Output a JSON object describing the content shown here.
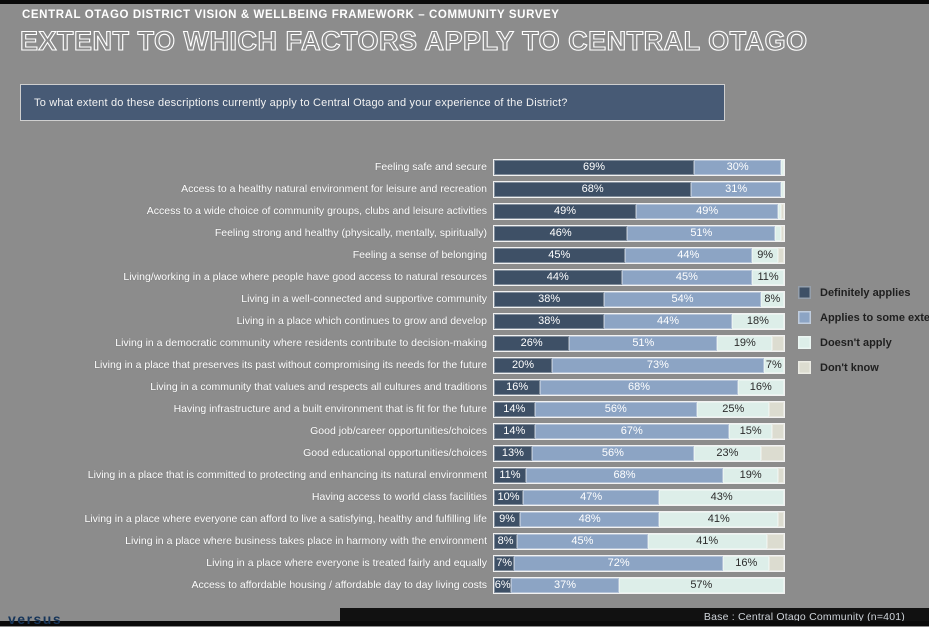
{
  "page": {
    "background": "#8c8c8c"
  },
  "header": {
    "eyebrow": "CENTRAL OTAGO DISTRICT VISION & WELLBEING FRAMEWORK – COMMUNITY SURVEY",
    "title": "EXTENT TO WHICH FACTORS APPLY TO CENTRAL OTAGO"
  },
  "question": {
    "text": "To what extent do these descriptions currently apply to Central Otago and your experience of the District?"
  },
  "legend": {
    "items": [
      {
        "label": "Definitely applies",
        "color": "#3e5066"
      },
      {
        "label": "Applies to some extent",
        "color": "#8ca4c4"
      },
      {
        "label": "Doesn't apply",
        "color": "#ddeee9"
      },
      {
        "label": "Don't know",
        "color": "#dcdcd0"
      }
    ]
  },
  "footer": {
    "logo": "versus",
    "base_note": "Base : Central Otago Community (n=401)"
  },
  "chart_data": {
    "type": "bar",
    "orientation": "horizontal",
    "stacked": true,
    "xlim": [
      0,
      100
    ],
    "grid": false,
    "legend_position": "right",
    "label_threshold": 6,
    "categories": [
      "Feeling safe and secure",
      "Access to a healthy natural environment for leisure and recreation",
      "Access to a wide choice of community groups, clubs and leisure activities",
      "Feeling strong and healthy (physically, mentally, spiritually)",
      "Feeling a sense of belonging",
      "Living/working in a place where people have good access to natural resources",
      "Living in a well-connected and supportive community",
      "Living in a place which continues to grow and develop",
      "Living in a democratic community where residents contribute to decision-making",
      "Living in a place that preserves its past without compromising its needs for the future",
      "Living in a community that values and respects all cultures and traditions",
      "Having infrastructure and a built environment that is fit for the future",
      "Good job/career opportunities/choices",
      "Good educational opportunities/choices",
      "Living in a place that is committed to protecting and enhancing its natural environment",
      "Having access to world class facilities",
      "Living in a place where everyone can afford to live a satisfying, healthy and fulfilling life",
      "Living in a place where business takes place in harmony with the environment",
      "Living in a place where everyone is treated fairly and equally",
      "Access to affordable housing / affordable day to day living costs"
    ],
    "series": [
      {
        "name": "Definitely applies",
        "color": "#3e5066",
        "values": [
          69,
          68,
          49,
          46,
          45,
          44,
          38,
          38,
          26,
          20,
          16,
          14,
          14,
          13,
          11,
          10,
          9,
          8,
          7,
          6
        ]
      },
      {
        "name": "Applies to some extent",
        "color": "#8ca4c4",
        "values": [
          30,
          31,
          49,
          51,
          44,
          45,
          54,
          44,
          51,
          73,
          68,
          56,
          67,
          56,
          68,
          47,
          48,
          45,
          72,
          37
        ]
      },
      {
        "name": "Doesn't apply",
        "color": "#ddeee9",
        "values": [
          1,
          1,
          1,
          2,
          9,
          11,
          8,
          18,
          19,
          7,
          16,
          25,
          15,
          23,
          19,
          43,
          41,
          41,
          16,
          57
        ]
      },
      {
        "name": "Don't know",
        "color": "#dcdcd0",
        "values": [
          0,
          0,
          1,
          1,
          2,
          0,
          0,
          0,
          4,
          0,
          0,
          5,
          4,
          8,
          2,
          0,
          2,
          6,
          5,
          0
        ]
      }
    ]
  }
}
